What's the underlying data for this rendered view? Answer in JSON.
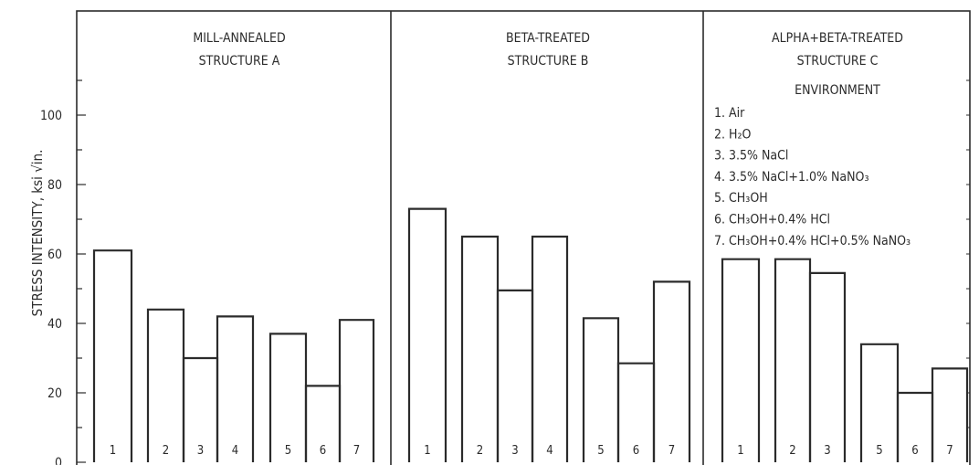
{
  "chart_data": {
    "type": "bar",
    "ylabel": "STRESS INTENSITY, ksi √in.",
    "ylim": [
      0,
      100
    ],
    "yticks": [
      "0",
      "20",
      "40",
      "60",
      "80",
      "100"
    ],
    "grid": false,
    "legend_title": "ENVIRONMENT",
    "legend": [
      "1. Air",
      "2. H₂O",
      "3. 3.5% NaCl",
      "4. 3.5% NaCl+1.0% NaNO₃",
      "5. CH₃OH",
      "6. CH₃OH+0.4% HCl",
      "7. CH₃OH+0.4% HCl+0.5% NaNO₃"
    ],
    "panels": [
      {
        "title_lines": [
          "MILL-ANNEALED",
          "STRUCTURE A"
        ],
        "bars": [
          {
            "label": "1",
            "value": 61
          },
          {
            "label": "2",
            "value": 44
          },
          {
            "label": "3",
            "value": 30
          },
          {
            "label": "4",
            "value": 42
          },
          {
            "label": "5",
            "value": 37
          },
          {
            "label": "6",
            "value": 22
          },
          {
            "label": "7",
            "value": 41
          }
        ]
      },
      {
        "title_lines": [
          "BETA-TREATED",
          "STRUCTURE B"
        ],
        "bars": [
          {
            "label": "1",
            "value": 73
          },
          {
            "label": "2",
            "value": 65
          },
          {
            "label": "3",
            "value": 49.5
          },
          {
            "label": "4",
            "value": 65
          },
          {
            "label": "5",
            "value": 41.5
          },
          {
            "label": "6",
            "value": 28.5
          },
          {
            "label": "7",
            "value": 52
          }
        ]
      },
      {
        "title_lines": [
          "ALPHA+BETA-TREATED",
          "STRUCTURE C"
        ],
        "bars": [
          {
            "label": "1",
            "value": 58.5
          },
          {
            "label": "2",
            "value": 58.5
          },
          {
            "label": "3",
            "value": 54.5
          },
          {
            "label": "5",
            "value": 34
          },
          {
            "label": "6",
            "value": 20
          },
          {
            "label": "7",
            "value": 27
          }
        ]
      }
    ]
  }
}
